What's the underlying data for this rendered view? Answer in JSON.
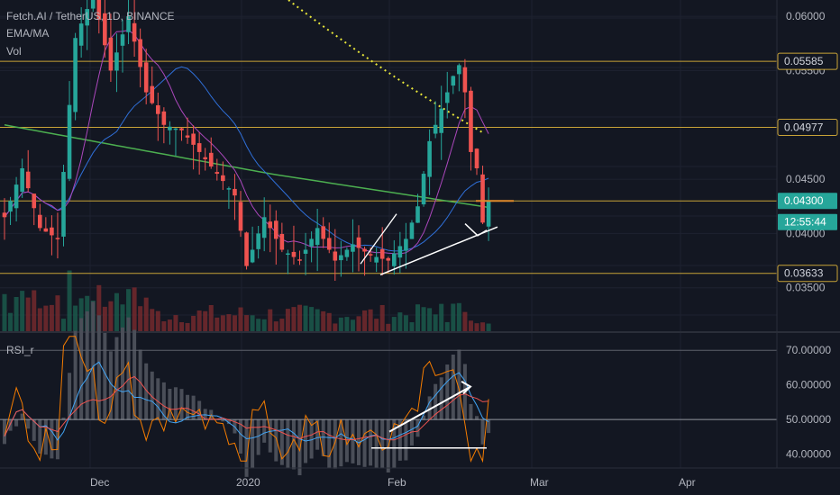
{
  "header": {
    "symbol_line": "Fetch.AI / TetherUS, 1D, BINANCE",
    "indicator_1": "EMA/MA",
    "indicator_2": "Vol",
    "rsi_title": "RSI_r"
  },
  "colors": {
    "background": "#131722",
    "candle_up": "#26a69a",
    "candle_down": "#ef5350",
    "ma_green": "#4caf50",
    "ma_blue": "#2962ff",
    "ma_violet": "#ab47bc",
    "hline": "#c8a337",
    "dotted": "#e8e63a",
    "trendline": "#ffffff"
  },
  "price_scale": {
    "ticks": [
      "0.06000",
      "0.05500",
      "0.04500",
      "0.04000",
      "0.03500"
    ],
    "labels": [
      {
        "text": "0.05585",
        "style": "level"
      },
      {
        "text": "0.04977",
        "style": "level"
      },
      {
        "text": "0.04300",
        "style": "price"
      },
      {
        "text": "12:55:44",
        "style": "countdown"
      },
      {
        "text": "0.03633",
        "style": "level"
      }
    ]
  },
  "rsi_scale": {
    "ticks": [
      "70.00000",
      "60.00000",
      "50.00000",
      "40.00000"
    ]
  },
  "time_axis": {
    "labels": [
      "Dec",
      "2020",
      "Feb",
      "Mar",
      "Apr"
    ]
  },
  "chart_data": {
    "type": "candlestick",
    "title": "Fetch.AI / TetherUS, 1D, BINANCE",
    "price_range": [
      0.031,
      0.0615
    ],
    "horizontal_levels": [
      0.05585,
      0.04977,
      0.043,
      0.03633
    ],
    "last_price": 0.043,
    "rsi_range": [
      36,
      75
    ],
    "rsi_levels": [
      70,
      50
    ],
    "time_labels": [
      "Dec",
      "2020",
      "Feb",
      "Mar",
      "Apr"
    ]
  }
}
